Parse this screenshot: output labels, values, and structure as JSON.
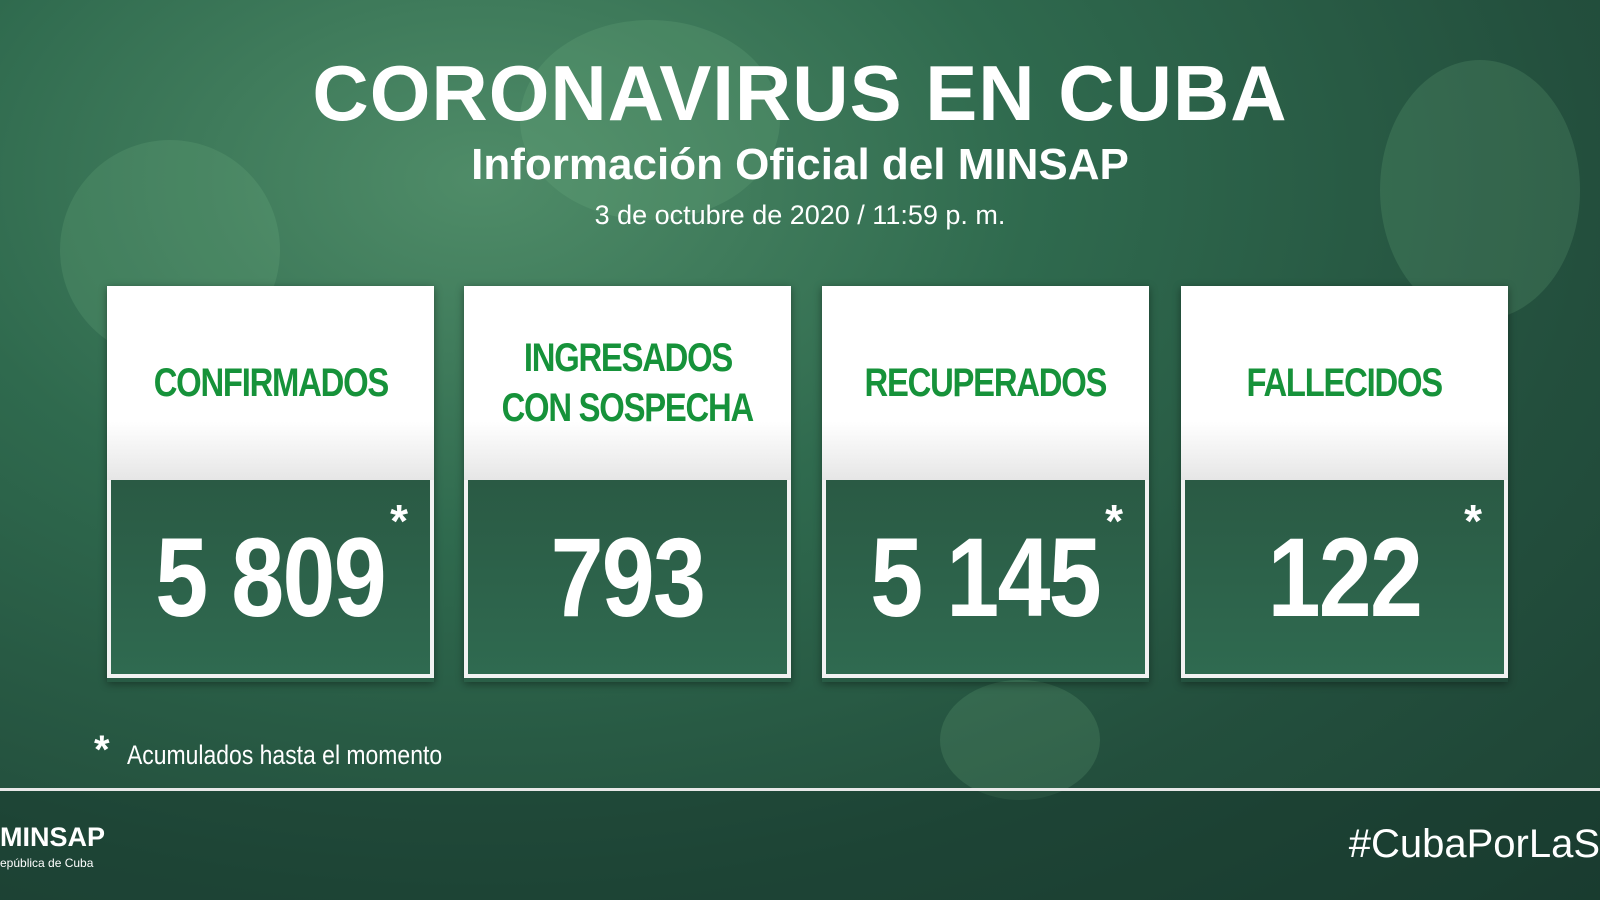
{
  "header": {
    "title": "CORONAVIRUS EN CUBA",
    "subtitle": "Información Oficial del MINSAP",
    "date": "3 de octubre de 2020 / 11:59 p. m."
  },
  "cards": [
    {
      "label_lines": [
        "CONFIRMADOS"
      ],
      "value": "5 809",
      "note": "*"
    },
    {
      "label_lines": [
        "INGRESADOS",
        "CON SOSPECHA"
      ],
      "value": "793"
    },
    {
      "label_lines": [
        "RECUPERADOS"
      ],
      "value": "5 145",
      "note": "*"
    },
    {
      "label_lines": [
        "FALLECIDOS"
      ],
      "value": "122",
      "note": "*"
    }
  ],
  "footnote": {
    "mark": "*",
    "text": "Acumulados hasta el momento"
  },
  "footer": {
    "logo": "MINSAP",
    "logo_sub": "epública de Cuba",
    "hashtag": "#CubaPorLaS"
  }
}
